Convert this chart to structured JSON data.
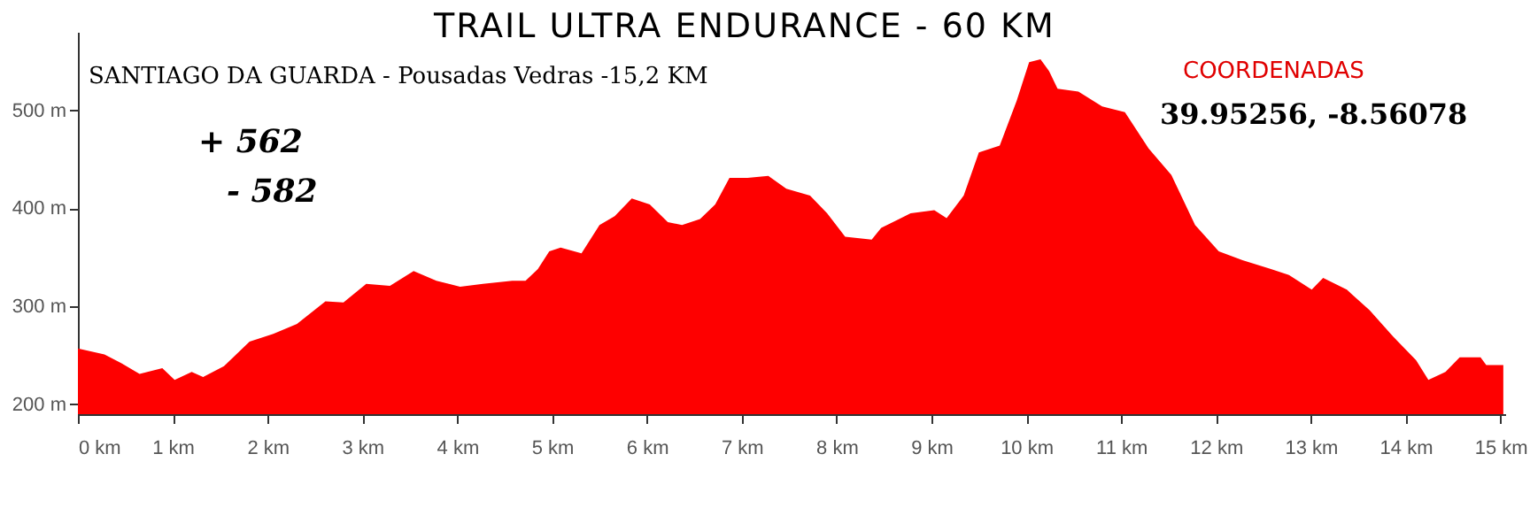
{
  "chart_data": {
    "type": "area",
    "title": "TRAIL ULTRA ENDURANCE - 60 KM",
    "subtitle": "SANTIAGO DA GUARDA - Pousadas Vedras -15,2 KM",
    "annotations": [
      "+ 562",
      "- 582",
      "COORDENADAS",
      "39.95256, -8.56078"
    ],
    "x": [
      0,
      0.28,
      0.46,
      0.65,
      0.89,
      1.02,
      1.2,
      1.32,
      1.54,
      1.81,
      2.06,
      2.31,
      2.61,
      2.8,
      3.04,
      3.29,
      3.54,
      3.78,
      4.03,
      4.27,
      4.58,
      4.72,
      4.85,
      4.97,
      5.09,
      5.31,
      5.5,
      5.66,
      5.84,
      6.03,
      6.22,
      6.37,
      6.56,
      6.72,
      6.87,
      7.06,
      7.28,
      7.47,
      7.72,
      7.9,
      8.09,
      8.37,
      8.47,
      8.78,
      9.03,
      9.16,
      9.34,
      9.5,
      9.72,
      9.9,
      10.03,
      10.15,
      10.24,
      10.33,
      10.55,
      10.8,
      11.04,
      11.29,
      11.53,
      11.78,
      12.03,
      12.28,
      12.58,
      12.77,
      13.01,
      13.13,
      13.38,
      13.62,
      13.87,
      14.11,
      14.24,
      14.42,
      14.57,
      14.79,
      14.85,
      15.03
    ],
    "series": [
      {
        "color": "#fe0000",
        "values": [
          257,
          251,
          242,
          231,
          237,
          225,
          233,
          228,
          239,
          264,
          272,
          282,
          305,
          304,
          323,
          321,
          336,
          326,
          320,
          323,
          326,
          326,
          338,
          356,
          360,
          354,
          383,
          392,
          410,
          404,
          386,
          383,
          389,
          404,
          431,
          431,
          433,
          420,
          413,
          395,
          371,
          368,
          380,
          395,
          398,
          390,
          413,
          457,
          464,
          510,
          549,
          552,
          540,
          522,
          519,
          504,
          498,
          461,
          434,
          383,
          356,
          347,
          338,
          332,
          317,
          329,
          317,
          296,
          269,
          245,
          225,
          233,
          248,
          248,
          240,
          240
        ]
      }
    ],
    "xlim": [
      0,
      15.05
    ],
    "ylim": [
      190,
      580
    ],
    "xticks": [
      {
        "value": 0,
        "label": "0 km"
      },
      {
        "value": 1,
        "label": "1 km"
      },
      {
        "value": 2,
        "label": "2 km"
      },
      {
        "value": 3,
        "label": "3 km"
      },
      {
        "value": 4,
        "label": "4 km"
      },
      {
        "value": 5,
        "label": "5 km"
      },
      {
        "value": 6,
        "label": "6 km"
      },
      {
        "value": 7,
        "label": "7 km"
      },
      {
        "value": 8,
        "label": "8 km"
      },
      {
        "value": 9,
        "label": "9 km"
      },
      {
        "value": 10,
        "label": "10 km"
      },
      {
        "value": 11,
        "label": "11 km"
      },
      {
        "value": 12,
        "label": "12 km"
      },
      {
        "value": 13,
        "label": "13 km"
      },
      {
        "value": 14,
        "label": "14 km"
      },
      {
        "value": 15,
        "label": "15 km"
      }
    ],
    "yticks": [
      {
        "value": 200,
        "label": "200 m"
      },
      {
        "value": 300,
        "label": "300 m"
      },
      {
        "value": 400,
        "label": "400 m"
      },
      {
        "value": 500,
        "label": "500 m"
      }
    ],
    "grid": false
  }
}
